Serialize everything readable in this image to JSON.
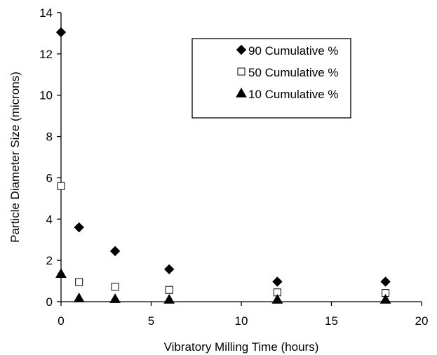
{
  "chart_data": {
    "type": "scatter",
    "xlabel": "Vibratory Milling Time (hours)",
    "ylabel": "Particle Diameter Size (microns)",
    "xlim": [
      0,
      20
    ],
    "ylim": [
      0,
      14
    ],
    "x_ticks": [
      "0",
      "5",
      "10",
      "15",
      "20"
    ],
    "y_ticks": [
      "0",
      "2",
      "4",
      "6",
      "8",
      "10",
      "12",
      "14"
    ],
    "grid": false,
    "legend_position": "top-right",
    "series": [
      {
        "name": "90 Cumulative %",
        "marker": "diamond-filled",
        "color": "#000000",
        "points": [
          {
            "x": 0,
            "y": 13.05
          },
          {
            "x": 1,
            "y": 3.6
          },
          {
            "x": 3,
            "y": 2.45
          },
          {
            "x": 6,
            "y": 1.57
          },
          {
            "x": 12,
            "y": 0.97
          },
          {
            "x": 18,
            "y": 0.97
          }
        ]
      },
      {
        "name": "50 Cumulative %",
        "marker": "square-open",
        "color": "#000000",
        "points": [
          {
            "x": 0,
            "y": 5.6
          },
          {
            "x": 1,
            "y": 0.95
          },
          {
            "x": 3,
            "y": 0.72
          },
          {
            "x": 6,
            "y": 0.57
          },
          {
            "x": 12,
            "y": 0.45
          },
          {
            "x": 18,
            "y": 0.42
          }
        ]
      },
      {
        "name": "10 Cumulative %",
        "marker": "triangle-filled",
        "color": "#000000",
        "points": [
          {
            "x": 0,
            "y": 1.35
          },
          {
            "x": 1,
            "y": 0.17
          },
          {
            "x": 3,
            "y": 0.13
          },
          {
            "x": 6,
            "y": 0.1
          },
          {
            "x": 12,
            "y": 0.1
          },
          {
            "x": 18,
            "y": 0.1
          }
        ]
      }
    ]
  }
}
